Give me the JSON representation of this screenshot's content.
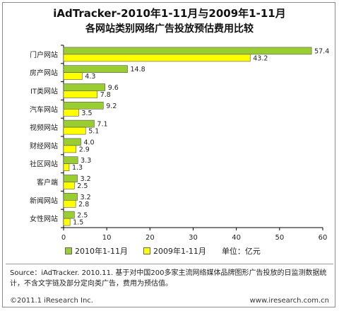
{
  "title_line1": "iAdTracker-2010年1-11月与2009年1-11月",
  "title_line2": "各网站类别网络广告投放预估费用比较",
  "legend": {
    "series1": "2010年1-11月",
    "series2": "2009年1-11月",
    "unit": "单位：亿元"
  },
  "source_text": "Source：iAdTracker. 2010.11. 基于对中国200多家主流网络媒体品牌图形广告投放的日监测数据统计，不含文字链及部分定向类广告，费用为预估值。",
  "footer": {
    "copyright": "©2011.1 iResearch Inc.",
    "website": "www.iresearch.com.cn"
  },
  "colors": {
    "series1": "#9ACD32",
    "series2": "#FFFF00",
    "bar_stroke": "#555555",
    "axis": "#000000"
  },
  "chart_data": {
    "type": "bar",
    "orientation": "horizontal",
    "categories": [
      "门户网站",
      "房产网站",
      "IT类网站",
      "汽车网站",
      "视频网站",
      "财经网站",
      "社区网站",
      "客户端",
      "新闻网站",
      "女性网站"
    ],
    "series": [
      {
        "name": "2010年1-11月",
        "values": [
          57.4,
          14.8,
          9.6,
          9.2,
          7.1,
          4.0,
          3.3,
          3.2,
          3.2,
          2.5
        ]
      },
      {
        "name": "2009年1-11月",
        "values": [
          43.2,
          4.3,
          7.8,
          3.5,
          5.1,
          2.9,
          1.3,
          2.5,
          2.8,
          1.5
        ]
      }
    ],
    "xlim": [
      0,
      60
    ],
    "xticks": [
      0,
      10,
      20,
      30,
      40,
      50,
      60
    ],
    "grid": false,
    "legend_position": "bottom"
  }
}
